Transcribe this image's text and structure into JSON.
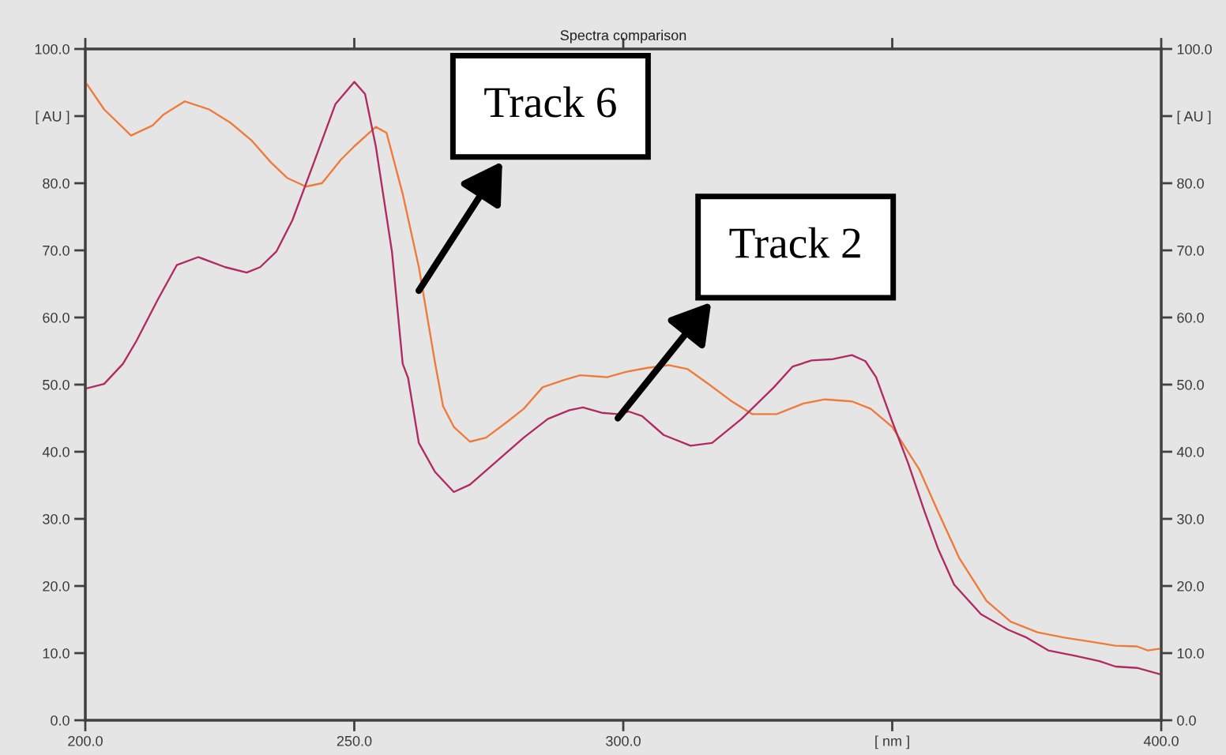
{
  "chart_data": {
    "type": "line",
    "title": "Spectra comparison",
    "series": [
      {
        "color": "#ee7b3c",
        "x": [
          200,
          203.5,
          208.5,
          212.5,
          214.5,
          218.5,
          223,
          227,
          231,
          234.5,
          237.5,
          241,
          244,
          247.5,
          250,
          254,
          256,
          259,
          262,
          265,
          266.5,
          268.5,
          271.5,
          274.5,
          278.5,
          281.5,
          285,
          289,
          292,
          297,
          300.5,
          304.5,
          308.5,
          312,
          316,
          320,
          324,
          328.5,
          333.5,
          337.5,
          342.5,
          346,
          350,
          355,
          358.5,
          362.5,
          367.5,
          372,
          377,
          382,
          387,
          391.5,
          395.5,
          397.5,
          400
        ],
        "values": [
          95.1,
          91.0,
          87.1,
          88.6,
          90.2,
          92.2,
          91.0,
          89.0,
          86.3,
          83.1,
          80.8,
          79.5,
          80.0,
          83.5,
          85.5,
          88.4,
          87.5,
          78.4,
          67.5,
          53.3,
          46.8,
          43.7,
          41.5,
          42.1,
          44.5,
          46.4,
          49.6,
          50.7,
          51.4,
          51.1,
          51.9,
          52.5,
          52.9,
          52.3,
          50.0,
          47.6,
          45.6,
          45.6,
          47.2,
          47.8,
          47.5,
          46.4,
          43.7,
          37.4,
          31.1,
          24.1,
          17.8,
          14.7,
          13.1,
          12.3,
          11.7,
          11.1,
          11.0,
          10.4,
          10.7
        ]
      },
      {
        "color": "#b02a63",
        "x": [
          200,
          203.5,
          207,
          209.5,
          213.5,
          217,
          221,
          226,
          230,
          232.5,
          235.5,
          238.5,
          242.5,
          246.5,
          250,
          252,
          254,
          257,
          259,
          260,
          262,
          265,
          268.5,
          271.5,
          276.5,
          281.5,
          286,
          290,
          292.5,
          296,
          299,
          301,
          303.5,
          307.5,
          312.5,
          316.5,
          322,
          328,
          331.5,
          335,
          339,
          342.5,
          345,
          347,
          350,
          353,
          356,
          358.5,
          361.5,
          366.5,
          371.5,
          375,
          379,
          384,
          388.5,
          391.5,
          395.5,
          400
        ],
        "values": [
          49.4,
          50.1,
          53.1,
          56.5,
          62.7,
          67.8,
          69.0,
          67.5,
          66.7,
          67.5,
          69.8,
          74.5,
          83.1,
          91.8,
          95.1,
          93.3,
          85.5,
          69.8,
          53.1,
          51.0,
          41.3,
          37.0,
          34.0,
          35.1,
          38.6,
          42.1,
          44.9,
          46.2,
          46.6,
          45.8,
          45.6,
          46.0,
          45.3,
          42.5,
          40.9,
          41.3,
          44.9,
          49.6,
          52.7,
          53.6,
          53.8,
          54.4,
          53.5,
          51.1,
          44.5,
          38.2,
          31.1,
          25.6,
          20.2,
          15.8,
          13.5,
          12.3,
          10.4,
          9.6,
          8.8,
          8.0,
          7.8,
          6.8
        ]
      }
    ],
    "annotations": [
      {
        "text": "Track 6",
        "x": 262,
        "y": 64
      },
      {
        "text": "Track 2",
        "x": 299,
        "y": 45
      }
    ],
    "xlim": [
      200,
      400
    ],
    "xticks": [
      {
        "value": 200,
        "label": "200.0"
      },
      {
        "value": 250,
        "label": "250.0"
      },
      {
        "value": 300,
        "label": "300.0"
      },
      {
        "value": 350,
        "label": "[ nm ]"
      },
      {
        "value": 400,
        "label": "400.0"
      }
    ],
    "ylim": [
      0,
      100
    ],
    "yticks": [
      {
        "value": 0,
        "label": "0.0"
      },
      {
        "value": 10,
        "label": "10.0"
      },
      {
        "value": 20,
        "label": "20.0"
      },
      {
        "value": 30,
        "label": "30.0"
      },
      {
        "value": 40,
        "label": "40.0"
      },
      {
        "value": 50,
        "label": "50.0"
      },
      {
        "value": 60,
        "label": "60.0"
      },
      {
        "value": 70,
        "label": "70.0"
      },
      {
        "value": 80,
        "label": "80.0"
      },
      {
        "value": 90,
        "label": "[ AU ]"
      },
      {
        "value": 100,
        "label": "100.0"
      }
    ],
    "y2lim": [
      0,
      100
    ],
    "y2ticks": [
      {
        "value": 0,
        "label": "0.0"
      },
      {
        "value": 10,
        "label": "10.0"
      },
      {
        "value": 20,
        "label": "20.0"
      },
      {
        "value": 30,
        "label": "30.0"
      },
      {
        "value": 40,
        "label": "40.0"
      },
      {
        "value": 50,
        "label": "50.0"
      },
      {
        "value": 60,
        "label": "60.0"
      },
      {
        "value": 70,
        "label": "70.0"
      },
      {
        "value": 80,
        "label": "80.0"
      },
      {
        "value": 90,
        "label": "[ AU ]"
      },
      {
        "value": 100,
        "label": "100.0"
      }
    ],
    "grid": false
  }
}
